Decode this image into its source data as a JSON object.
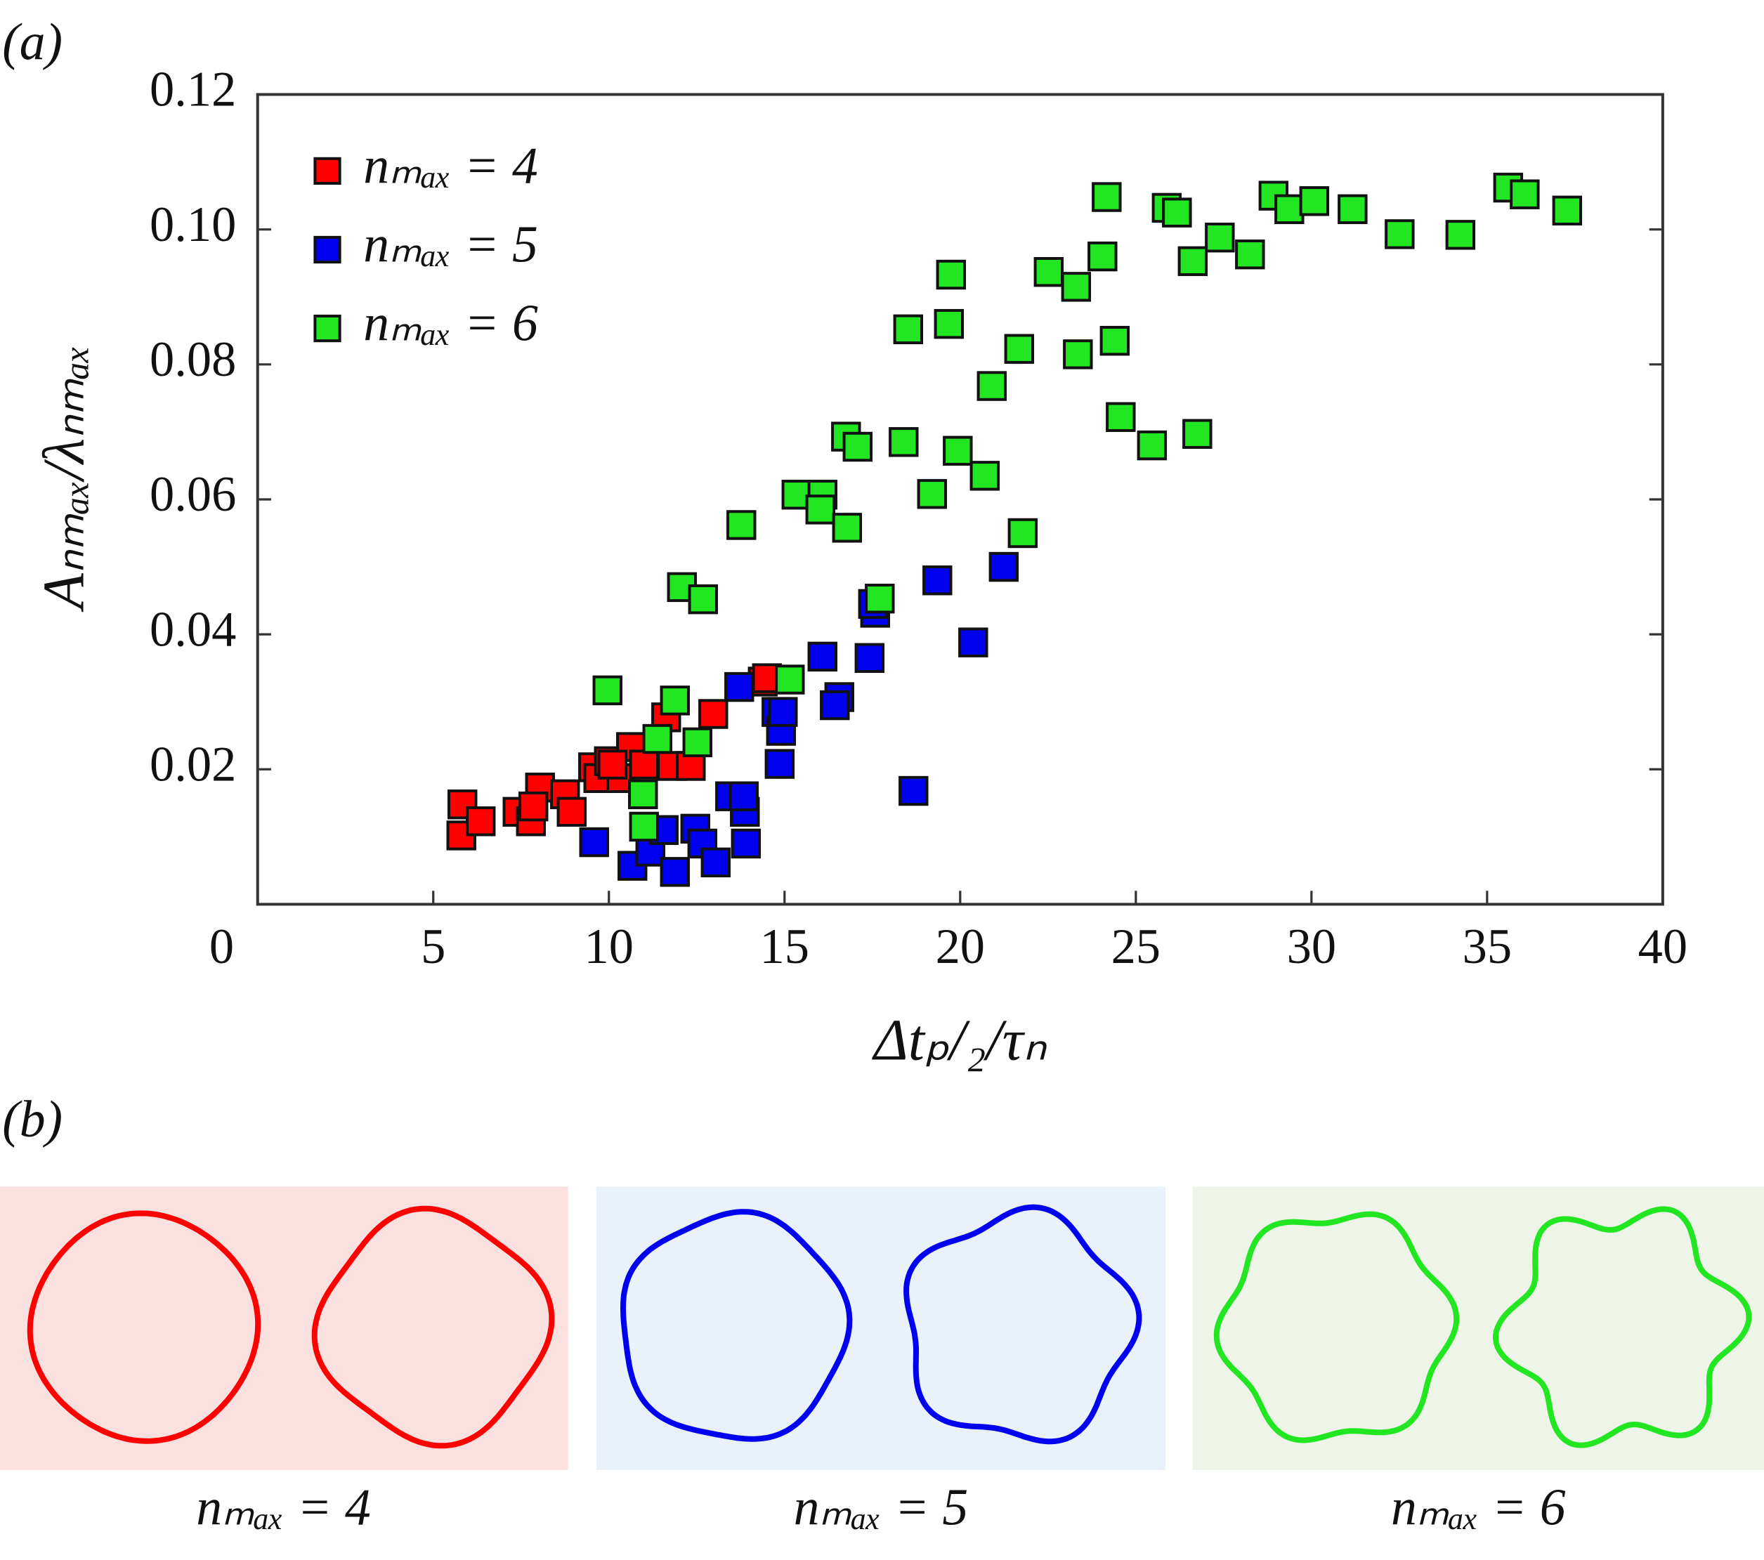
{
  "chart_data": {
    "type": "scatter",
    "label": "(a)",
    "xlabel": "Δtₚ/₂/τₙ",
    "ylabel": "Aₙₘₐₓ/λₙₘₐₓ",
    "xlim": [
      0,
      40
    ],
    "xticks": [
      0,
      5,
      10,
      15,
      20,
      25,
      30,
      35,
      40
    ],
    "ylim": [
      0,
      0.12
    ],
    "yticks": [
      0.02,
      0.04,
      0.06,
      0.08,
      {
        "value": 0.1,
        "label": "0.10"
      },
      0.12
    ],
    "legend": "upper left",
    "series": [
      {
        "name": "nₘₐₓ = 4",
        "color": "#ff0000",
        "x": [
          5.83,
          5.8,
          6.35,
          7.4,
          7.78,
          8.04,
          7.85,
          8.75,
          8.94,
          9.55,
          9.7,
          10.0,
          10.35,
          10.63,
          11.0,
          11.63,
          11.79,
          12.33,
          12.97,
          14.38,
          14.5,
          10.1
        ],
        "values": [
          0.0148,
          0.0102,
          0.0123,
          0.0137,
          0.0123,
          0.0173,
          0.0145,
          0.0163,
          0.0137,
          0.0203,
          0.0187,
          0.0212,
          0.0187,
          0.0233,
          0.0207,
          0.0277,
          0.0205,
          0.0205,
          0.0282,
          0.033,
          0.0335,
          0.0207
        ]
      },
      {
        "name": "nₘₐₓ = 5",
        "color": "#0000f0",
        "x": [
          9.58,
          10.67,
          11.18,
          11.56,
          11.88,
          12.46,
          12.66,
          13.04,
          13.45,
          13.87,
          13.84,
          13.9,
          13.71,
          14.77,
          14.9,
          14.95,
          14.86,
          16.08,
          16.56,
          16.43,
          17.42,
          17.58,
          17.52,
          18.67,
          19.35,
          20.37,
          21.24
        ],
        "values": [
          0.0092,
          0.0057,
          0.0078,
          0.011,
          0.0048,
          0.0112,
          0.009,
          0.0062,
          0.016,
          0.0137,
          0.016,
          0.009,
          0.0322,
          0.0285,
          0.0257,
          0.0285,
          0.0208,
          0.0367,
          0.0307,
          0.0295,
          0.0365,
          0.0432,
          0.0445,
          0.0168,
          0.048,
          0.0388,
          0.05
        ]
      },
      {
        "name": "nₘₐₓ = 6",
        "color": "#22e622",
        "x": [
          9.96,
          11.0,
          10.97,
          11.38,
          11.88,
          12.52,
          12.08,
          12.68,
          13.77,
          15.15,
          15.34,
          16.08,
          16.02,
          16.78,
          16.75,
          17.08,
          17.71,
          18.39,
          18.52,
          19.2,
          19.68,
          19.74,
          19.93,
          20.7,
          20.9,
          21.68,
          21.78,
          22.52,
          23.3,
          23.35,
          24.05,
          24.17,
          24.4,
          24.57,
          25.46,
          25.88,
          26.17,
          26.62,
          26.75,
          27.39,
          28.25,
          28.92,
          29.37,
          30.08,
          31.17,
          32.51,
          34.24,
          35.6,
          36.07,
          37.28
        ],
        "values": [
          0.0317,
          0.0115,
          0.0163,
          0.0245,
          0.0302,
          0.024,
          0.047,
          0.0452,
          0.0562,
          0.0333,
          0.0607,
          0.0607,
          0.0585,
          0.0558,
          0.0693,
          0.0678,
          0.0453,
          0.0685,
          0.0852,
          0.0608,
          0.086,
          0.0933,
          0.0672,
          0.0635,
          0.0768,
          0.0823,
          0.055,
          0.0937,
          0.0915,
          0.0815,
          0.096,
          0.1048,
          0.0835,
          0.0722,
          0.068,
          0.1032,
          0.1025,
          0.0953,
          0.0697,
          0.0988,
          0.0963,
          0.105,
          0.103,
          0.1042,
          0.103,
          0.0993,
          0.0992,
          0.1062,
          0.1052,
          0.1028
        ]
      }
    ]
  },
  "figure_b": {
    "label": "(b)",
    "panels": [
      {
        "label": "nₘₐₓ = 4"
      },
      {
        "label": "nₘₐₓ = 5"
      },
      {
        "label": "nₘₐₓ = 6"
      }
    ]
  }
}
